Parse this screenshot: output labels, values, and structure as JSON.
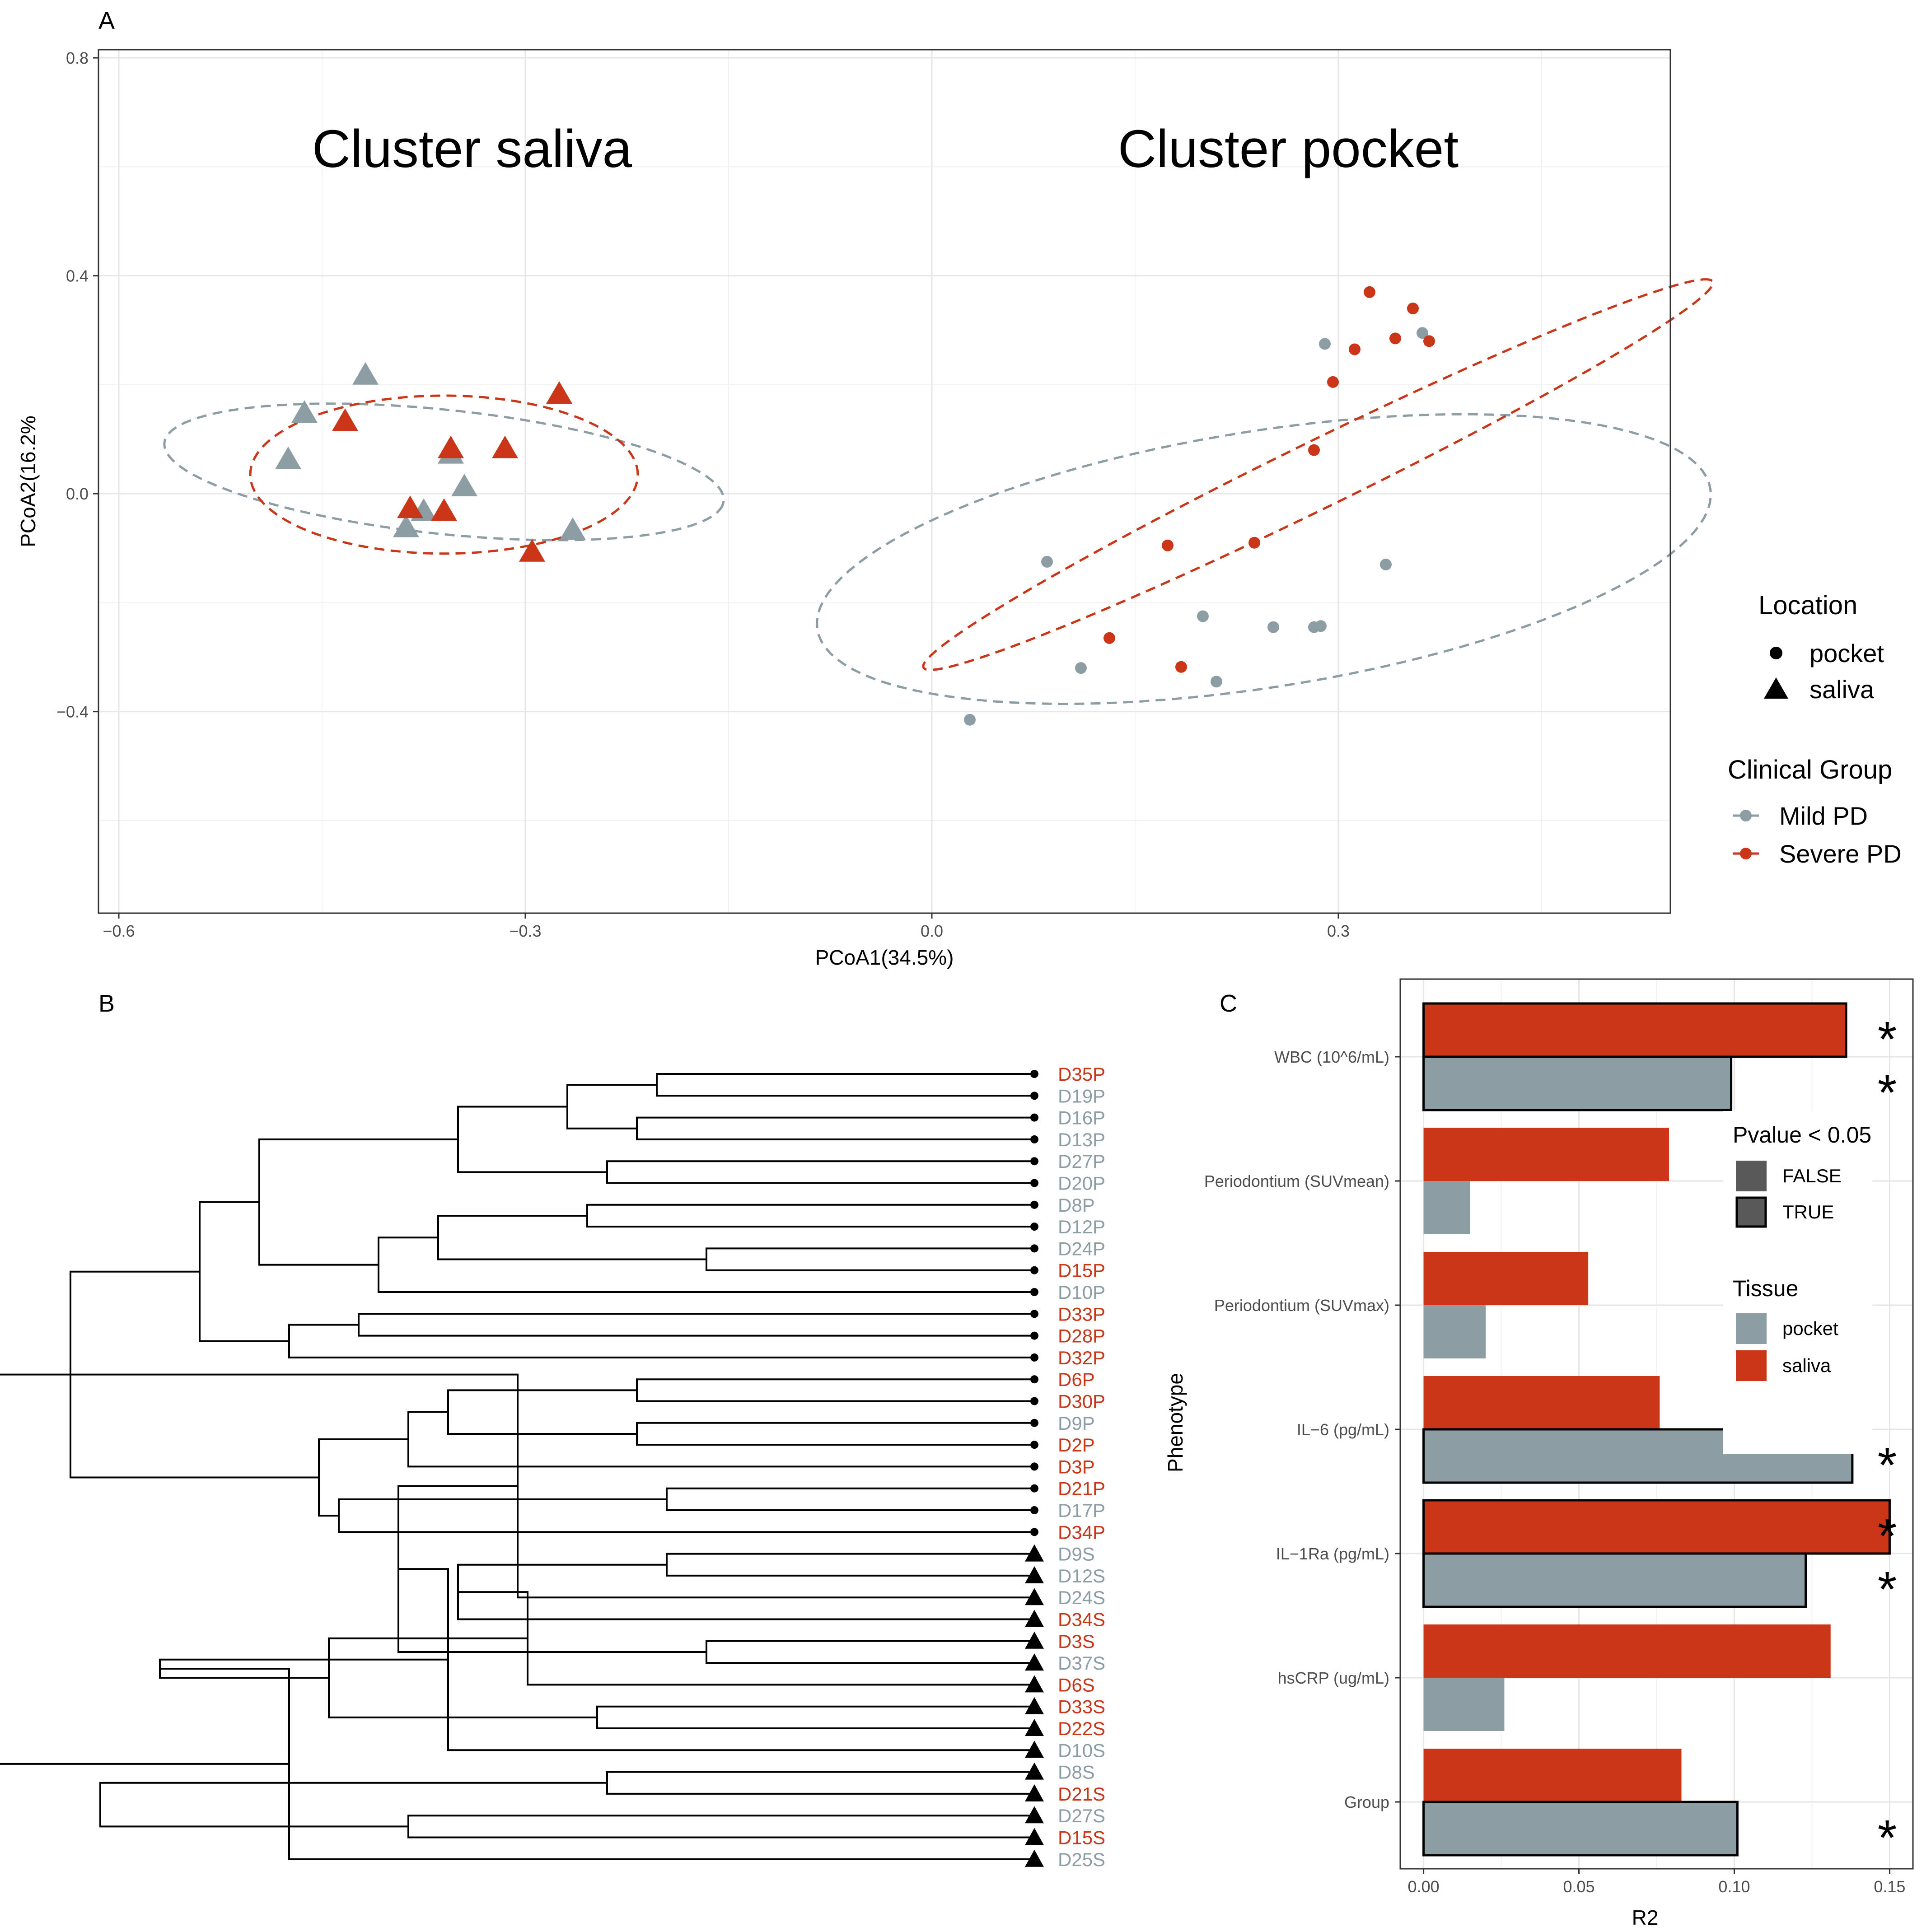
{
  "colors": {
    "mild": "#8c9ea4",
    "severe": "#cb3518",
    "pocket_fill": "#8c9ea4",
    "saliva_fill": "#cb3518",
    "false_fill": "#595959",
    "true_fill": "#595959"
  },
  "panelA": {
    "label": "A",
    "cluster_saliva_label": "Cluster saliva",
    "cluster_pocket_label": "Cluster pocket",
    "legend": {
      "location_title": "Location",
      "location_items": [
        "pocket",
        "saliva"
      ],
      "group_title": "Clinical  Group",
      "group_items": [
        "Mild PD",
        "Severe PD"
      ]
    }
  },
  "panelB": {
    "label": "B"
  },
  "panelC": {
    "label": "C",
    "legend": {
      "pvalue_title": "Pvalue < 0.05",
      "pvalue_items": [
        "FALSE",
        "TRUE"
      ],
      "tissue_title": "Tissue",
      "tissue_items": [
        "pocket",
        "saliva"
      ]
    },
    "significance_marker": "*"
  },
  "chart_data": [
    {
      "type": "scatter",
      "panel": "A",
      "title": "",
      "xlabel": "PCoA1(34.5%)",
      "ylabel": "PCoA2(16.2%",
      "xlim": [
        -0.615,
        0.545
      ],
      "ylim": [
        -0.77,
        0.815
      ],
      "xticks": [
        -0.6,
        -0.3,
        0.0,
        0.3
      ],
      "xtick_labels": [
        "−0.6",
        "−0.3",
        "0.0",
        "0.3"
      ],
      "yticks": [
        -0.4,
        0.0,
        0.4,
        0.8
      ],
      "ytick_labels": [
        "−0.4",
        "0.0",
        "0.4",
        "0.8"
      ],
      "grid": true,
      "series": [
        {
          "name": "saliva / Mild PD",
          "shape": "triangle",
          "group": "mild",
          "points": [
            [
              -0.418,
              0.22
            ],
            [
              -0.463,
              0.15
            ],
            [
              -0.475,
              0.065
            ],
            [
              -0.355,
              0.075
            ],
            [
              -0.345,
              0.015
            ],
            [
              -0.375,
              -0.03
            ],
            [
              -0.388,
              -0.06
            ],
            [
              -0.265,
              -0.065
            ]
          ]
        },
        {
          "name": "saliva / Severe PD",
          "shape": "triangle",
          "group": "severe",
          "points": [
            [
              -0.433,
              0.135
            ],
            [
              -0.275,
              0.185
            ],
            [
              -0.355,
              0.085
            ],
            [
              -0.315,
              0.085
            ],
            [
              -0.385,
              -0.025
            ],
            [
              -0.36,
              -0.03
            ],
            [
              -0.295,
              -0.105
            ]
          ]
        },
        {
          "name": "pocket / Mild PD",
          "shape": "circle",
          "group": "mild",
          "points": [
            [
              0.362,
              0.295
            ],
            [
              0.29,
              0.275
            ],
            [
              0.085,
              -0.125
            ],
            [
              0.335,
              -0.13
            ],
            [
              0.2,
              -0.225
            ],
            [
              0.252,
              -0.245
            ],
            [
              0.282,
              -0.245
            ],
            [
              0.287,
              -0.243
            ],
            [
              0.11,
              -0.32
            ],
            [
              0.21,
              -0.345
            ],
            [
              0.028,
              -0.415
            ]
          ]
        },
        {
          "name": "pocket / Severe PD",
          "shape": "circle",
          "group": "severe",
          "points": [
            [
              0.323,
              0.37
            ],
            [
              0.355,
              0.34
            ],
            [
              0.342,
              0.285
            ],
            [
              0.367,
              0.28
            ],
            [
              0.312,
              0.265
            ],
            [
              0.296,
              0.205
            ],
            [
              0.282,
              0.08
            ],
            [
              0.174,
              -0.095
            ],
            [
              0.238,
              -0.09
            ],
            [
              0.131,
              -0.265
            ],
            [
              0.184,
              -0.318
            ]
          ]
        }
      ],
      "ellipses": [
        {
          "group": "mild",
          "cluster": "saliva",
          "center": [
            -0.36,
            0.04
          ],
          "semi_axes": [
            0.215,
            0.11
          ],
          "angle_deg": -19
        },
        {
          "group": "severe",
          "cluster": "saliva",
          "center": [
            -0.36,
            0.035
          ],
          "semi_axes": [
            0.143,
            0.145
          ],
          "angle_deg": 0
        },
        {
          "group": "mild",
          "cluster": "pocket",
          "center": [
            0.245,
            -0.12
          ],
          "semi_axes": [
            0.365,
            0.215
          ],
          "angle_deg": 32
        },
        {
          "group": "severe",
          "cluster": "pocket",
          "center": [
            0.285,
            0.035
          ],
          "semi_axes": [
            0.46,
            0.043
          ],
          "angle_deg": 51
        }
      ]
    },
    {
      "type": "dendrogram",
      "panel": "B",
      "title": "",
      "leaves": [
        {
          "label": "D35P",
          "group": "severe",
          "shape": "circle"
        },
        {
          "label": "D19P",
          "group": "mild",
          "shape": "circle"
        },
        {
          "label": "D16P",
          "group": "mild",
          "shape": "circle"
        },
        {
          "label": "D13P",
          "group": "mild",
          "shape": "circle"
        },
        {
          "label": "D27P",
          "group": "mild",
          "shape": "circle"
        },
        {
          "label": "D20P",
          "group": "mild",
          "shape": "circle"
        },
        {
          "label": "D8P",
          "group": "mild",
          "shape": "circle"
        },
        {
          "label": "D12P",
          "group": "mild",
          "shape": "circle"
        },
        {
          "label": "D24P",
          "group": "mild",
          "shape": "circle"
        },
        {
          "label": "D15P",
          "group": "severe",
          "shape": "circle"
        },
        {
          "label": "D10P",
          "group": "mild",
          "shape": "circle"
        },
        {
          "label": "D33P",
          "group": "severe",
          "shape": "circle"
        },
        {
          "label": "D28P",
          "group": "severe",
          "shape": "circle"
        },
        {
          "label": "D32P",
          "group": "severe",
          "shape": "circle"
        },
        {
          "label": "D6P",
          "group": "severe",
          "shape": "circle"
        },
        {
          "label": "D30P",
          "group": "severe",
          "shape": "circle"
        },
        {
          "label": "D9P",
          "group": "mild",
          "shape": "circle"
        },
        {
          "label": "D2P",
          "group": "severe",
          "shape": "circle"
        },
        {
          "label": "D3P",
          "group": "severe",
          "shape": "circle"
        },
        {
          "label": "D21P",
          "group": "severe",
          "shape": "circle"
        },
        {
          "label": "D17P",
          "group": "mild",
          "shape": "circle"
        },
        {
          "label": "D34P",
          "group": "severe",
          "shape": "circle"
        },
        {
          "label": "D9S",
          "group": "mild",
          "shape": "triangle"
        },
        {
          "label": "D12S",
          "group": "mild",
          "shape": "triangle"
        },
        {
          "label": "D24S",
          "group": "mild",
          "shape": "triangle"
        },
        {
          "label": "D34S",
          "group": "severe",
          "shape": "triangle"
        },
        {
          "label": "D3S",
          "group": "severe",
          "shape": "triangle"
        },
        {
          "label": "D37S",
          "group": "mild",
          "shape": "triangle"
        },
        {
          "label": "D6S",
          "group": "severe",
          "shape": "triangle"
        },
        {
          "label": "D33S",
          "group": "severe",
          "shape": "triangle"
        },
        {
          "label": "D22S",
          "group": "severe",
          "shape": "triangle"
        },
        {
          "label": "D10S",
          "group": "mild",
          "shape": "triangle"
        },
        {
          "label": "D8S",
          "group": "mild",
          "shape": "triangle"
        },
        {
          "label": "D21S",
          "group": "severe",
          "shape": "triangle"
        },
        {
          "label": "D27S",
          "group": "mild",
          "shape": "triangle"
        },
        {
          "label": "D15S",
          "group": "severe",
          "shape": "triangle"
        },
        {
          "label": "D25S",
          "group": "mild",
          "shape": "triangle"
        }
      ],
      "merges": [
        [
          0,
          1,
          0.62
        ],
        [
          2,
          3,
          0.6
        ],
        [
          -1,
          -2,
          0.53
        ],
        [
          4,
          5,
          0.57
        ],
        [
          -3,
          -4,
          0.42
        ],
        [
          6,
          7,
          0.55
        ],
        [
          8,
          9,
          0.67
        ],
        [
          -6,
          -7,
          0.4
        ],
        [
          -8,
          10,
          0.34
        ],
        [
          -5,
          -9,
          0.22
        ],
        [
          11,
          12,
          0.32
        ],
        [
          -11,
          13,
          0.25
        ],
        [
          -10,
          -12,
          0.16
        ],
        [
          14,
          15,
          0.6
        ],
        [
          16,
          17,
          0.6
        ],
        [
          -14,
          -15,
          0.41
        ],
        [
          -16,
          18,
          0.37
        ],
        [
          19,
          20,
          0.63
        ],
        [
          -18,
          21,
          0.3
        ],
        [
          -17,
          -19,
          0.28
        ],
        [
          -13,
          -20,
          0.03
        ],
        [
          22,
          23,
          0.63
        ],
        [
          -21,
          24,
          0.48
        ],
        [
          -22,
          25,
          0.42
        ],
        [
          26,
          27,
          0.67
        ],
        [
          -24,
          28,
          0.49
        ],
        [
          -23,
          -25,
          0.36
        ],
        [
          29,
          30,
          0.56
        ],
        [
          -27,
          31,
          0.41
        ],
        [
          -26,
          -28,
          0.29
        ],
        [
          32,
          33,
          0.57
        ],
        [
          -29,
          -30,
          0.12
        ],
        [
          34,
          35,
          0.37
        ],
        [
          -32,
          36,
          0.25
        ],
        [
          -31,
          -33,
          0.06
        ],
        [
          -21,
          -34,
          -0.06
        ]
      ]
    },
    {
      "type": "bar",
      "panel": "C",
      "orientation": "horizontal",
      "title": "",
      "xlabel": "R2",
      "ylabel": "Phenotype",
      "xlim": [
        -0.0075,
        0.1575
      ],
      "xticks": [
        0.0,
        0.05,
        0.1,
        0.15
      ],
      "xtick_labels": [
        "0.00",
        "0.05",
        "0.10",
        "0.15"
      ],
      "categories": [
        "WBC (10^6/mL)",
        "Periodontium (SUVmean)",
        "Periodontium (SUVmax)",
        "IL−6 (pg/mL)",
        "IL−1Ra (pg/mL)",
        "hsCRP (ug/mL)",
        "Group"
      ],
      "series": [
        {
          "name": "saliva",
          "values": [
            0.136,
            0.079,
            0.053,
            0.076,
            0.15,
            0.131,
            0.083
          ],
          "significant": [
            true,
            false,
            false,
            false,
            true,
            false,
            false
          ]
        },
        {
          "name": "pocket",
          "values": [
            0.099,
            0.015,
            0.02,
            0.138,
            0.123,
            0.026,
            0.101
          ],
          "significant": [
            true,
            false,
            false,
            true,
            true,
            false,
            true
          ]
        }
      ],
      "grid": true
    }
  ]
}
